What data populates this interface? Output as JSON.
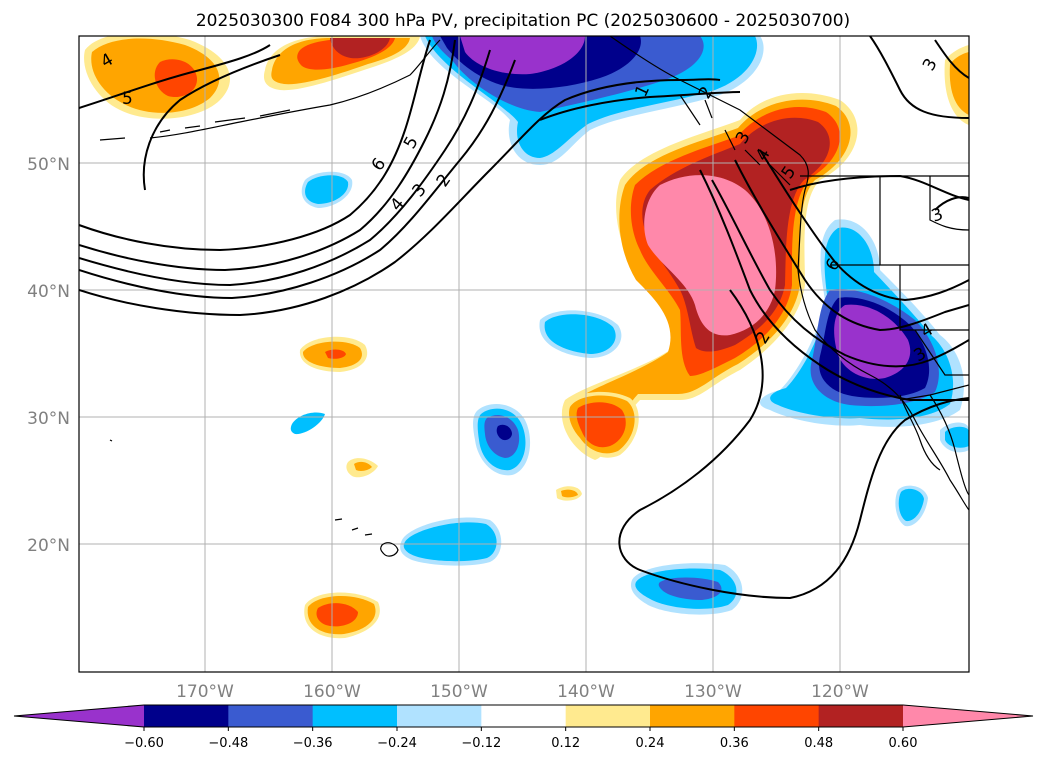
{
  "title": "2025030300 F084 300 hPa PV, precipitation PC (2025030600 - 2025030700)",
  "map": {
    "lat_ticks": [
      "50°N",
      "40°N",
      "30°N",
      "20°N"
    ],
    "lon_ticks": [
      "170°W",
      "160°W",
      "150°W",
      "140°W",
      "130°W",
      "120°W"
    ],
    "grid": true
  },
  "colorbar": {
    "tick_labels": [
      "−0.60",
      "−0.48",
      "−0.36",
      "−0.24",
      "−0.12",
      "0.12",
      "0.24",
      "0.36",
      "0.48",
      "0.60"
    ],
    "colors": [
      "#9932CC",
      "#00008B",
      "#3A5BD0",
      "#00BFFF",
      "#B0E2FF",
      "#FFFFFF",
      "#FFEA8F",
      "#FFA500",
      "#FF4500",
      "#B22222",
      "#FF88AA"
    ],
    "extend": "both"
  },
  "contour_labels": [
    "4",
    "5",
    "6",
    "5",
    "4",
    "3",
    "2",
    "1",
    "2",
    "3",
    "4",
    "5",
    "6",
    "2",
    "3",
    "4",
    "3",
    "3"
  ],
  "colors": {
    "land_outline": "#000000",
    "grid": "#b0b0b0",
    "tick_text": "#808080"
  }
}
